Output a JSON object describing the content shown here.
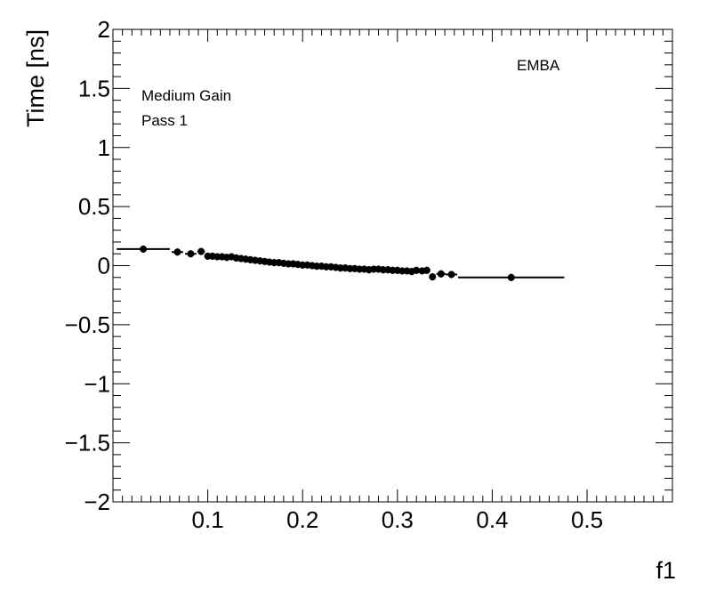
{
  "chart_data": {
    "type": "scatter",
    "xlabel": "f1",
    "ylabel": "Time [ns]",
    "xlim": [
      0.0,
      0.59
    ],
    "ylim": [
      -2,
      2
    ],
    "x_ticks": [
      0.1,
      0.2,
      0.3,
      0.4,
      0.5
    ],
    "x_tick_labels": [
      "0.1",
      "0.2",
      "0.3",
      "0.4",
      "0.5"
    ],
    "y_ticks": [
      -2,
      -1.5,
      -1,
      -0.5,
      0,
      0.5,
      1,
      1.5,
      2
    ],
    "y_tick_labels": [
      "−2",
      "−1.5",
      "−1",
      "−0.5",
      "0",
      "0.5",
      "1",
      "1.5",
      "2"
    ],
    "annotations": [
      "Medium Gain",
      "Pass 1",
      "EMBA"
    ],
    "grid": false,
    "legend": "none",
    "series": [
      {
        "points": [
          {
            "x": 0.032,
            "y": 0.14,
            "xerr": 0.028
          },
          {
            "x": 0.068,
            "y": 0.115,
            "xerr": 0.006
          },
          {
            "x": 0.082,
            "y": 0.1,
            "xerr": 0.006
          },
          {
            "x": 0.093,
            "y": 0.12,
            "xerr": 0.004
          },
          {
            "x": 0.1,
            "y": 0.08,
            "xerr": 0.003
          },
          {
            "x": 0.105,
            "y": 0.08,
            "xerr": 0.002
          },
          {
            "x": 0.11,
            "y": 0.075,
            "xerr": 0.002
          },
          {
            "x": 0.115,
            "y": 0.075,
            "xerr": 0.002
          },
          {
            "x": 0.12,
            "y": 0.07,
            "xerr": 0.002
          },
          {
            "x": 0.125,
            "y": 0.075,
            "xerr": 0.002
          },
          {
            "x": 0.13,
            "y": 0.065,
            "xerr": 0.002
          },
          {
            "x": 0.135,
            "y": 0.06,
            "xerr": 0.002
          },
          {
            "x": 0.14,
            "y": 0.055,
            "xerr": 0.002
          },
          {
            "x": 0.145,
            "y": 0.05,
            "xerr": 0.002
          },
          {
            "x": 0.15,
            "y": 0.045,
            "xerr": 0.002
          },
          {
            "x": 0.155,
            "y": 0.04,
            "xerr": 0.002
          },
          {
            "x": 0.16,
            "y": 0.035,
            "xerr": 0.002
          },
          {
            "x": 0.165,
            "y": 0.03,
            "xerr": 0.002
          },
          {
            "x": 0.17,
            "y": 0.025,
            "xerr": 0.002
          },
          {
            "x": 0.175,
            "y": 0.025,
            "xerr": 0.002
          },
          {
            "x": 0.18,
            "y": 0.02,
            "xerr": 0.002
          },
          {
            "x": 0.185,
            "y": 0.015,
            "xerr": 0.002
          },
          {
            "x": 0.19,
            "y": 0.015,
            "xerr": 0.002
          },
          {
            "x": 0.195,
            "y": 0.01,
            "xerr": 0.002
          },
          {
            "x": 0.2,
            "y": 0.005,
            "xerr": 0.002
          },
          {
            "x": 0.205,
            "y": 0.005,
            "xerr": 0.002
          },
          {
            "x": 0.21,
            "y": 0.0,
            "xerr": 0.002
          },
          {
            "x": 0.215,
            "y": -0.005,
            "xerr": 0.002
          },
          {
            "x": 0.22,
            "y": -0.005,
            "xerr": 0.002
          },
          {
            "x": 0.225,
            "y": -0.01,
            "xerr": 0.002
          },
          {
            "x": 0.23,
            "y": -0.01,
            "xerr": 0.002
          },
          {
            "x": 0.235,
            "y": -0.015,
            "xerr": 0.002
          },
          {
            "x": 0.24,
            "y": -0.02,
            "xerr": 0.002
          },
          {
            "x": 0.245,
            "y": -0.02,
            "xerr": 0.002
          },
          {
            "x": 0.25,
            "y": -0.025,
            "xerr": 0.002
          },
          {
            "x": 0.255,
            "y": -0.025,
            "xerr": 0.002
          },
          {
            "x": 0.26,
            "y": -0.03,
            "xerr": 0.002
          },
          {
            "x": 0.265,
            "y": -0.03,
            "xerr": 0.002
          },
          {
            "x": 0.27,
            "y": -0.035,
            "xerr": 0.002
          },
          {
            "x": 0.275,
            "y": -0.03,
            "xerr": 0.002
          },
          {
            "x": 0.28,
            "y": -0.03,
            "xerr": 0.002
          },
          {
            "x": 0.285,
            "y": -0.035,
            "xerr": 0.002
          },
          {
            "x": 0.29,
            "y": -0.035,
            "xerr": 0.002
          },
          {
            "x": 0.295,
            "y": -0.04,
            "xerr": 0.002
          },
          {
            "x": 0.3,
            "y": -0.04,
            "xerr": 0.002
          },
          {
            "x": 0.305,
            "y": -0.045,
            "xerr": 0.002
          },
          {
            "x": 0.31,
            "y": -0.045,
            "xerr": 0.002
          },
          {
            "x": 0.315,
            "y": -0.05,
            "xerr": 0.002
          },
          {
            "x": 0.32,
            "y": -0.04,
            "xerr": 0.002
          },
          {
            "x": 0.326,
            "y": -0.045,
            "xerr": 0.003
          },
          {
            "x": 0.331,
            "y": -0.04,
            "xerr": 0.003
          },
          {
            "x": 0.337,
            "y": -0.095,
            "xerr": 0.003
          },
          {
            "x": 0.346,
            "y": -0.07,
            "xerr": 0.005
          },
          {
            "x": 0.357,
            "y": -0.075,
            "xerr": 0.006
          },
          {
            "x": 0.42,
            "y": -0.1,
            "xerr": 0.056
          }
        ]
      }
    ]
  }
}
